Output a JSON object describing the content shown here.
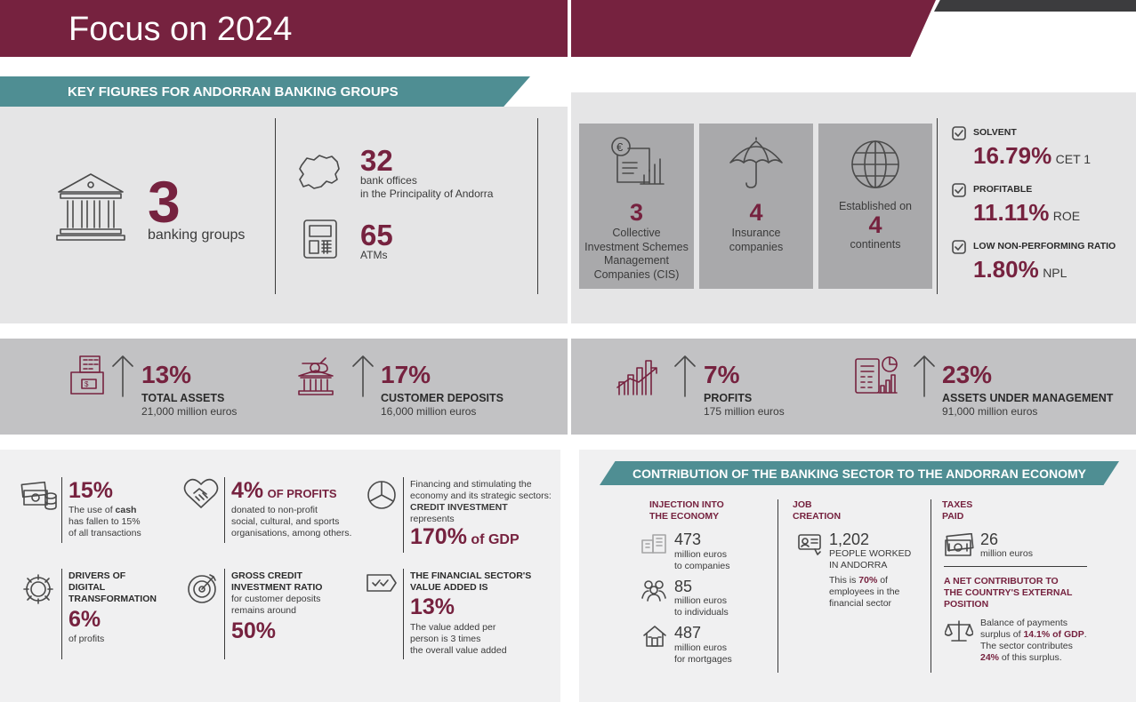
{
  "header": {
    "title": "Focus on 2024"
  },
  "key_figures": {
    "banner": "KEY FIGURES FOR ANDORRAN BANKING GROUPS",
    "groups_value": "3",
    "groups_label": "banking groups",
    "offices_value": "32",
    "offices_label_1": "bank offices",
    "offices_label_2": "in the Principality of Andorra",
    "atms_value": "65",
    "atms_label": "ATMs",
    "cis_value": "3",
    "cis_label_1": "Collective",
    "cis_label_2": "Investment Schemes",
    "cis_label_3": "Management",
    "cis_label_4": "Companies (CIS)",
    "insurance_value": "4",
    "insurance_label_1": "Insurance",
    "insurance_label_2": "companies",
    "continents_pre": "Established on",
    "continents_value": "4",
    "continents_label": "continents"
  },
  "ratios": [
    {
      "title": "SOLVENT",
      "value": "16.79%",
      "unit": "CET 1"
    },
    {
      "title": "PROFITABLE",
      "value": "11.11%",
      "unit": "ROE"
    },
    {
      "title": "LOW NON-PERFORMING RATIO",
      "value": "1.80%",
      "unit": "NPL"
    }
  ],
  "growth": [
    {
      "pct": "13%",
      "label": "TOTAL ASSETS",
      "sub": "21,000 million euros"
    },
    {
      "pct": "17%",
      "label": "CUSTOMER DEPOSITS",
      "sub": "16,000 million euros"
    },
    {
      "pct": "7%",
      "label": "PROFITS",
      "sub": "175 million euros"
    },
    {
      "pct": "23%",
      "label": "ASSETS UNDER MANAGEMENT",
      "sub": "91,000 million euros"
    }
  ],
  "bottom_left": {
    "cash_pct": "15%",
    "cash_l1_pre": "The use of ",
    "cash_l1_bold": "cash",
    "cash_l2": "has fallen to 15%",
    "cash_l3": "of all transactions",
    "profits_pct": "4%",
    "profits_of": "OF PROFITS",
    "profits_l1": "donated to non-profit",
    "profits_l2": "social, cultural, and sports",
    "profits_l3": "organisations, among others.",
    "credit_l1": "Financing and stimulating the",
    "credit_l2": "economy and its strategic sectors:",
    "credit_l3": "CREDIT INVESTMENT",
    "credit_l4": "represents",
    "credit_value": "170%",
    "credit_of": "of GDP",
    "digital_l1": "DRIVERS OF",
    "digital_l2": "DIGITAL",
    "digital_l3": "TRANSFORMATION",
    "digital_value": "6%",
    "digital_sub": "of profits",
    "gcir_l1": "GROSS CREDIT",
    "gcir_l2": "INVESTMENT RATIO",
    "gcir_l3": "for customer deposits",
    "gcir_l4": "remains around",
    "gcir_value": "50%",
    "va_l1": "THE FINANCIAL SECTOR'S",
    "va_l2": "VALUE ADDED IS",
    "va_value": "13%",
    "va_s1": "The value added per",
    "va_s2": "person is 3 times",
    "va_s3": "the overall value added"
  },
  "contribution": {
    "banner": "CONTRIBUTION OF THE BANKING SECTOR TO THE ANDORRAN ECONOMY",
    "inj_h1": "INJECTION INTO",
    "inj_h2": "THE ECONOMY",
    "inj1_value": "473",
    "inj1_l1": "million euros",
    "inj1_l2": "to companies",
    "inj2_value": "85",
    "inj2_l1": "million euros",
    "inj2_l2": "to individuals",
    "inj3_value": "487",
    "inj3_l1": "million euros",
    "inj3_l2": "for mortgages",
    "job_h1": "JOB",
    "job_h2": "CREATION",
    "job_value": "1,202",
    "job_l1": "PEOPLE WORKED",
    "job_l2": "IN ANDORRA",
    "job_s1_pre": "This is ",
    "job_s1_bold": "70%",
    "job_s1_post": " of",
    "job_s2": "employees in the",
    "job_s3": "financial sector",
    "tax_h1": "TAXES",
    "tax_h2": "PAID",
    "tax_value": "26",
    "tax_l1": "million euros",
    "net_h1": "A NET CONTRIBUTOR TO",
    "net_h2": "THE COUNTRY'S EXTERNAL",
    "net_h3": "POSITION",
    "net_s1": "Balance of payments",
    "net_s2_pre": "surplus of ",
    "net_s2_bold": "14.1% of GDP",
    "net_s2_post": ".",
    "net_s3": "The sector contributes",
    "net_s4_bold": "24%",
    "net_s4_post": " of this surplus."
  },
  "colors": {
    "maroon": "#76223f",
    "teal": "#4f8e93",
    "light_grey": "#e5e5e6",
    "mid_grey": "#c2c2c4",
    "panel_grey": "#a9a9ab"
  }
}
